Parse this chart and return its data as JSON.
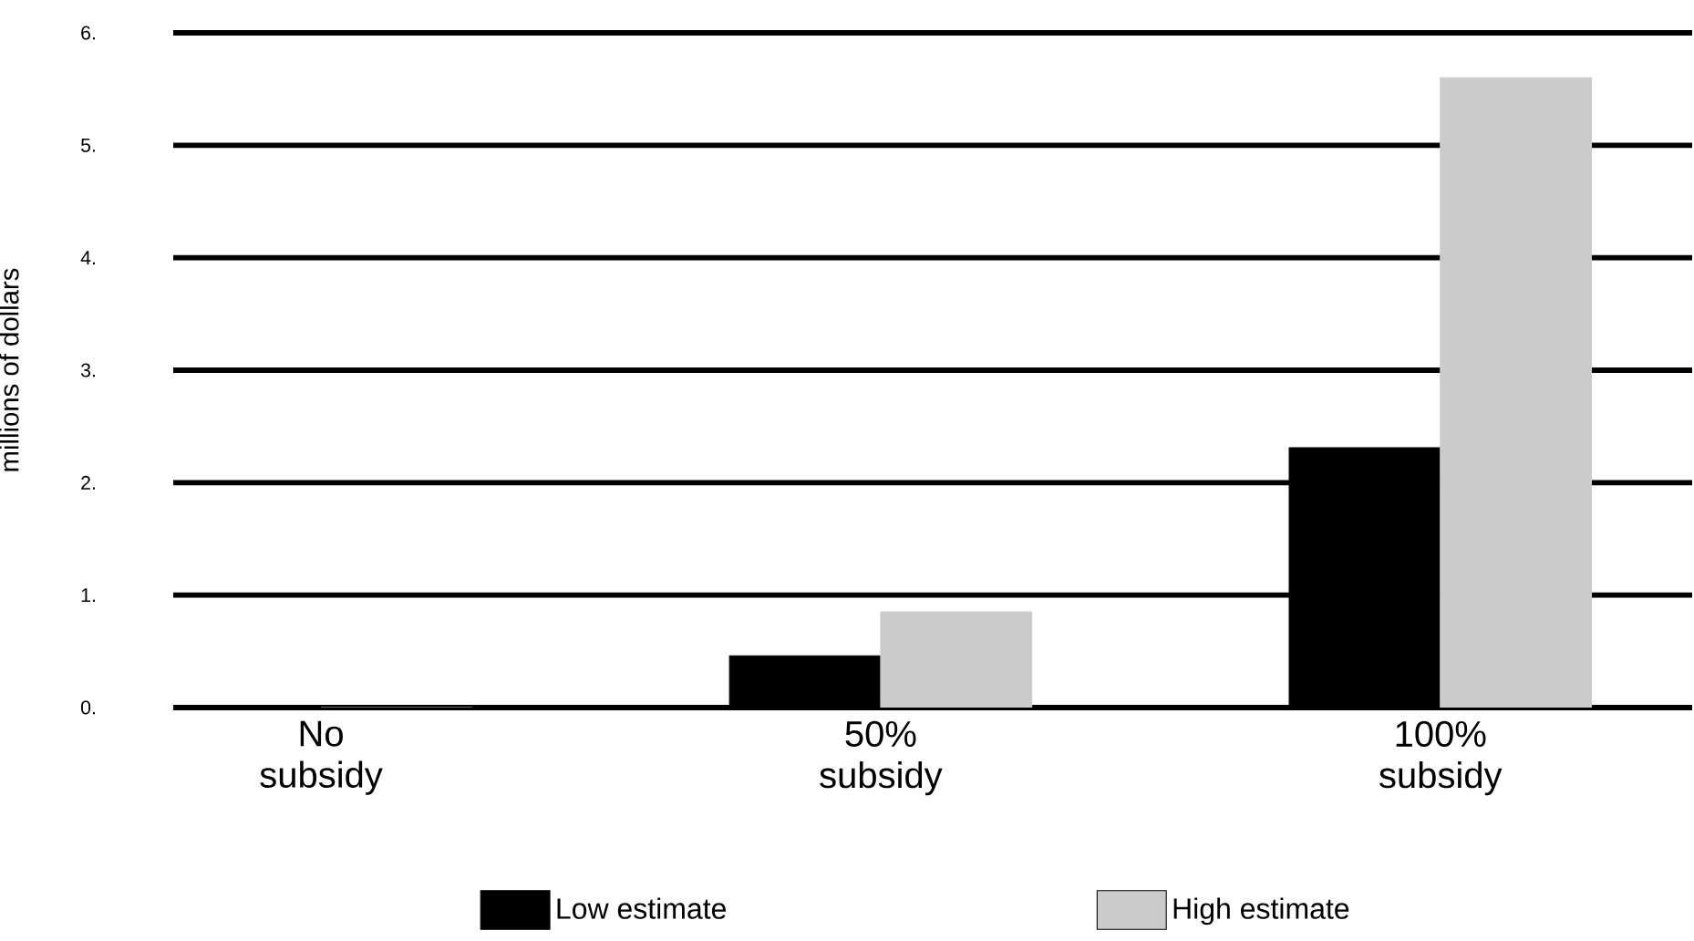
{
  "chart_data": {
    "type": "bar",
    "ylabel": "millions of dollars",
    "categories": [
      "No subsidy",
      "50% subsidy",
      "100% subsidy"
    ],
    "series": [
      {
        "name": "Low estimate",
        "color": "#000000",
        "values": [
          0,
          0.46,
          2.31
        ]
      },
      {
        "name": "High estimate",
        "color": "#cbcbcb",
        "values": [
          0,
          0.85,
          5.6
        ]
      }
    ],
    "ylim": [
      0,
      6
    ],
    "yticks": [
      {
        "value": 0,
        "label": "0."
      },
      {
        "value": 1,
        "label": "1."
      },
      {
        "value": 2,
        "label": "2."
      },
      {
        "value": 3,
        "label": "3."
      },
      {
        "value": 4,
        "label": "4."
      },
      {
        "value": 5,
        "label": "5."
      },
      {
        "value": 6,
        "label": "6."
      }
    ],
    "grid": "y",
    "legend": "bottom"
  }
}
